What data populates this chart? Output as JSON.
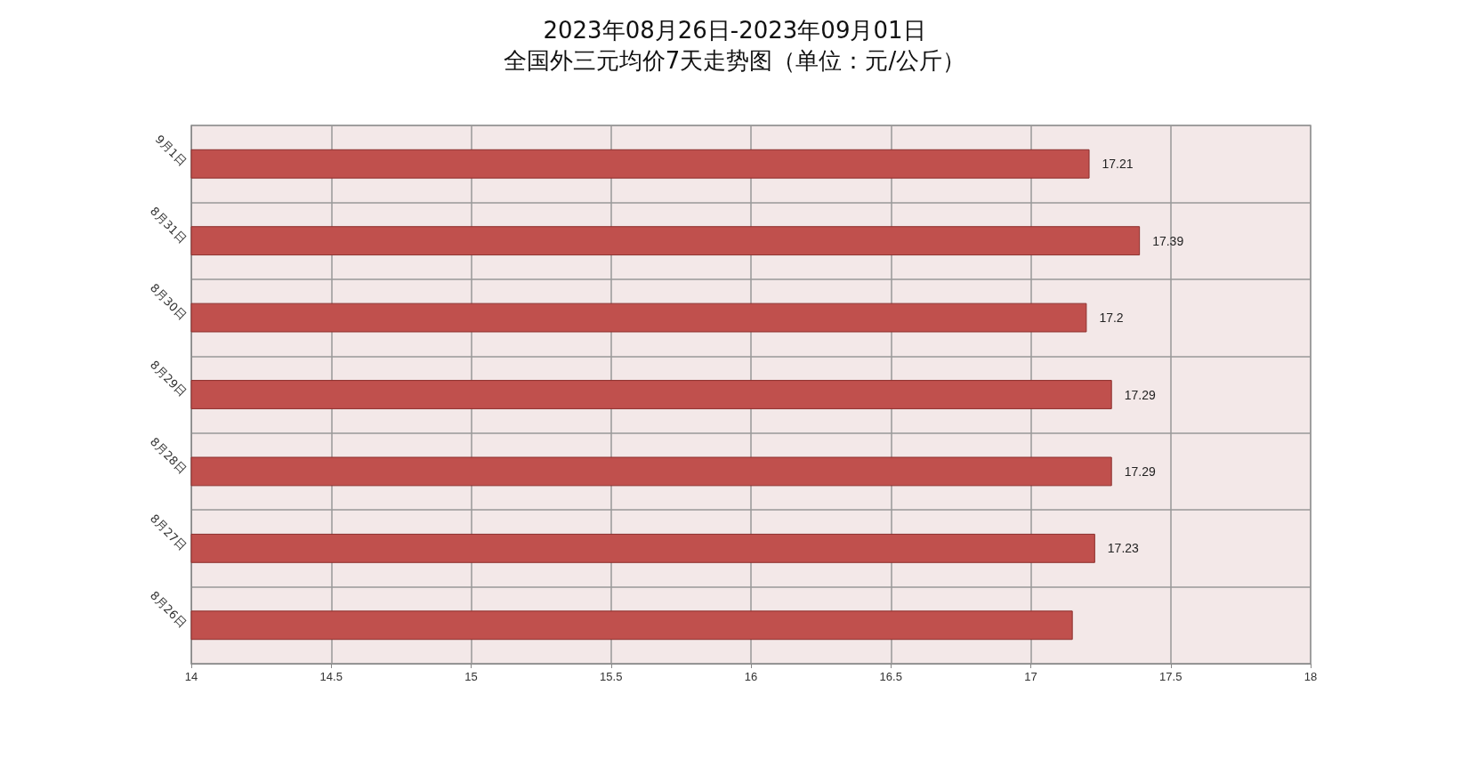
{
  "chart_data": {
    "type": "bar",
    "orientation": "horizontal",
    "title": "2023年08月26日-2023年09月01日",
    "subtitle": "全国外三元均价7天走势图（单位：元/公斤）",
    "categories": [
      "9月1日",
      "8月31日",
      "8月30日",
      "8月29日",
      "8月28日",
      "8月27日",
      "8月26日"
    ],
    "values": [
      17.21,
      17.39,
      17.2,
      17.29,
      17.29,
      17.23,
      17.15
    ],
    "value_labels": [
      "17.21",
      "17.39",
      "17.2",
      "17.29",
      "17.29",
      "17.23",
      null
    ],
    "color": "#c0504d",
    "xlim": [
      14,
      18
    ],
    "xticks": [
      14,
      14.5,
      15,
      15.5,
      16,
      16.5,
      17,
      17.5,
      18
    ],
    "grid": true
  }
}
